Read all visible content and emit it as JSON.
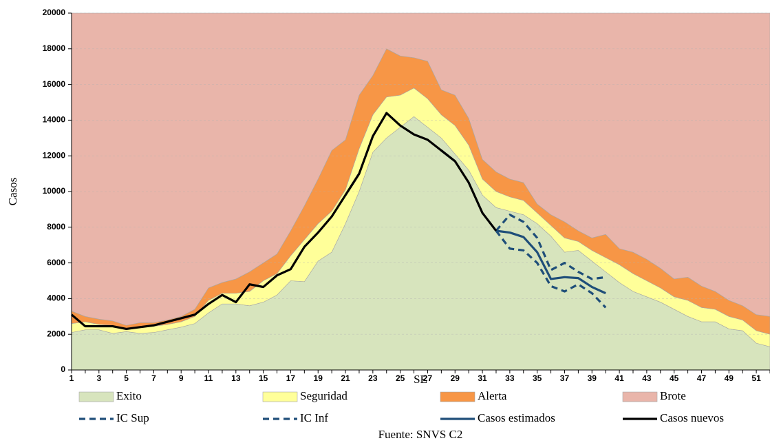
{
  "chart_data": {
    "type": "area",
    "x_label": "SE",
    "y_label": "Casos",
    "source": "Fuente: SNVS C2",
    "x": [
      1,
      2,
      3,
      4,
      5,
      6,
      7,
      8,
      9,
      10,
      11,
      12,
      13,
      14,
      15,
      16,
      17,
      18,
      19,
      20,
      21,
      22,
      23,
      24,
      25,
      26,
      27,
      28,
      29,
      30,
      31,
      32,
      33,
      34,
      35,
      36,
      37,
      38,
      39,
      40,
      41,
      42,
      43,
      44,
      45,
      46,
      47,
      48,
      49,
      50,
      51,
      52
    ],
    "xlim": [
      1,
      52
    ],
    "xticks": [
      1,
      3,
      5,
      7,
      9,
      11,
      13,
      15,
      17,
      19,
      21,
      23,
      25,
      27,
      29,
      31,
      33,
      35,
      37,
      39,
      41,
      43,
      45,
      47,
      49,
      51
    ],
    "ylim": [
      0,
      20000
    ],
    "yticks": [
      0,
      2000,
      4000,
      6000,
      8000,
      10000,
      12000,
      14000,
      16000,
      18000,
      20000
    ],
    "grid": true,
    "stacked": true,
    "series": [
      {
        "name": "Exito",
        "kind": "area",
        "color": "#d7e4bd",
        "values": [
          2100,
          2250,
          2250,
          2050,
          2150,
          2050,
          2100,
          2250,
          2400,
          2600,
          3200,
          3700,
          3700,
          3600,
          3800,
          4200,
          5000,
          4950,
          6100,
          6600,
          8200,
          10000,
          12200,
          13000,
          13600,
          14200,
          13600,
          13000,
          12100,
          11200,
          9800,
          9100,
          8900,
          8700,
          8200,
          7500,
          6600,
          6700,
          6100,
          5500,
          4900,
          4400,
          4100,
          3800,
          3400,
          3000,
          2700,
          2700,
          2300,
          2200,
          1500,
          1300
        ]
      },
      {
        "name": "Seguridad",
        "kind": "area",
        "color": "#ffff99",
        "values": [
          500,
          450,
          300,
          450,
          150,
          350,
          350,
          300,
          300,
          400,
          700,
          600,
          600,
          800,
          1200,
          1200,
          1400,
          2350,
          2100,
          2300,
          1900,
          2400,
          2100,
          2300,
          1800,
          1600,
          1600,
          1300,
          1600,
          1400,
          900,
          900,
          800,
          800,
          600,
          600,
          800,
          500,
          600,
          800,
          1000,
          1000,
          900,
          800,
          700,
          900,
          800,
          700,
          700,
          600,
          700,
          700
        ]
      },
      {
        "name": "Alerta",
        "kind": "area",
        "color": "#f79646",
        "values": [
          700,
          300,
          300,
          250,
          200,
          250,
          200,
          250,
          300,
          400,
          700,
          600,
          800,
          1100,
          1000,
          1100,
          1400,
          1900,
          2500,
          3400,
          2800,
          3000,
          2200,
          2700,
          2200,
          1700,
          2100,
          1400,
          1700,
          1500,
          1100,
          1100,
          1000,
          1000,
          500,
          600,
          900,
          600,
          700,
          1300,
          900,
          1200,
          1200,
          1100,
          1000,
          1300,
          1200,
          1000,
          900,
          800,
          900,
          1000
        ]
      },
      {
        "name": "Brote",
        "kind": "area",
        "color": "#e9b5aa",
        "values": [
          16700,
          17000,
          17150,
          17250,
          17500,
          17350,
          17350,
          17200,
          17000,
          16600,
          15400,
          15100,
          14900,
          14500,
          14000,
          13500,
          12200,
          10800,
          9300,
          7700,
          7100,
          4600,
          3500,
          2000,
          2400,
          2500,
          2700,
          4300,
          4600,
          5900,
          8200,
          8900,
          9300,
          9500,
          10700,
          11300,
          11700,
          12200,
          12600,
          12400,
          13200,
          13400,
          13800,
          14300,
          14900,
          14800,
          15300,
          15600,
          16100,
          16400,
          16900,
          17000
        ]
      },
      {
        "name": "IC Sup",
        "kind": "line",
        "dashed": true,
        "color": "#1f4e79",
        "values": [
          null,
          null,
          null,
          null,
          null,
          null,
          null,
          null,
          null,
          null,
          null,
          null,
          null,
          null,
          null,
          null,
          null,
          null,
          null,
          null,
          null,
          null,
          null,
          null,
          null,
          null,
          null,
          null,
          null,
          null,
          null,
          7800,
          8700,
          8300,
          7400,
          5600,
          6000,
          5500,
          5100,
          5200,
          null,
          null,
          null,
          null,
          null,
          null,
          null,
          null,
          null,
          null,
          null,
          null
        ]
      },
      {
        "name": "IC Inf",
        "kind": "line",
        "dashed": true,
        "color": "#1f4e79",
        "values": [
          null,
          null,
          null,
          null,
          null,
          null,
          null,
          null,
          null,
          null,
          null,
          null,
          null,
          null,
          null,
          null,
          null,
          null,
          null,
          null,
          null,
          null,
          null,
          null,
          null,
          null,
          null,
          null,
          null,
          null,
          null,
          7800,
          6800,
          6700,
          6000,
          4700,
          4400,
          4800,
          4300,
          3500,
          null,
          null,
          null,
          null,
          null,
          null,
          null,
          null,
          null,
          null,
          null,
          null
        ]
      },
      {
        "name": "Casos estimados",
        "kind": "line",
        "dashed": false,
        "color": "#1f4e79",
        "values": [
          null,
          null,
          null,
          null,
          null,
          null,
          null,
          null,
          null,
          null,
          null,
          null,
          null,
          null,
          null,
          null,
          null,
          null,
          null,
          null,
          9800,
          11000,
          null,
          null,
          null,
          null,
          null,
          12300,
          11700,
          null,
          null,
          7800,
          7700,
          7450,
          6600,
          5100,
          5200,
          5150,
          4650,
          4300,
          null,
          null,
          null,
          null,
          null,
          null,
          null,
          null,
          null,
          null,
          null,
          null
        ]
      },
      {
        "name": "Casos nuevos",
        "kind": "line",
        "dashed": false,
        "color": "#000000",
        "values": [
          3100,
          2450,
          2450,
          2450,
          2300,
          2400,
          2500,
          2700,
          2900,
          3100,
          3700,
          4200,
          3800,
          4800,
          4650,
          5300,
          5650,
          6900,
          7700,
          8600,
          9800,
          11000,
          13100,
          14400,
          13700,
          13200,
          12900,
          12300,
          11700,
          10500,
          8800,
          7800,
          null,
          null,
          null,
          null,
          null,
          null,
          null,
          null,
          null,
          null,
          null,
          null,
          null,
          null,
          null,
          null,
          null,
          null,
          null,
          null
        ]
      }
    ]
  }
}
